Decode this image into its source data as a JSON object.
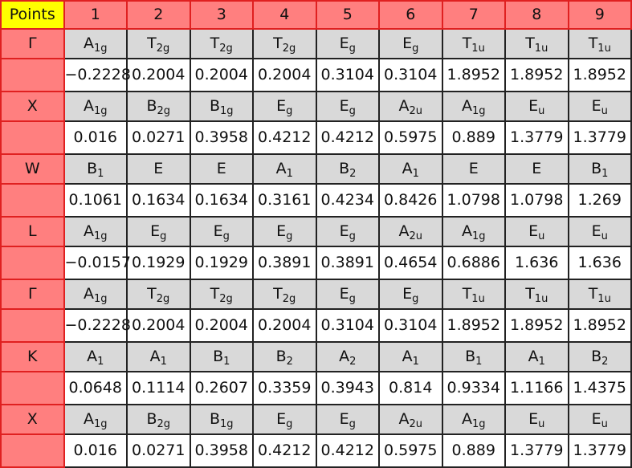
{
  "table": {
    "header": [
      "Points",
      "1",
      "2",
      "3",
      "4",
      "5",
      "6",
      "7",
      "8",
      "9"
    ],
    "rows": [
      {
        "point": "Γ",
        "symmetry": [
          {
            "base": "A",
            "sub": "1g"
          },
          {
            "base": "T",
            "sub": "2g"
          },
          {
            "base": "T",
            "sub": "2g"
          },
          {
            "base": "T",
            "sub": "2g"
          },
          {
            "base": "E",
            "sub": "g"
          },
          {
            "base": "E",
            "sub": "g"
          },
          {
            "base": "T",
            "sub": "1u"
          },
          {
            "base": "T",
            "sub": "1u"
          },
          {
            "base": "T",
            "sub": "1u"
          }
        ],
        "energies": [
          "−0.2228",
          "0.2004",
          "0.2004",
          "0.2004",
          "0.3104",
          "0.3104",
          "1.8952",
          "1.8952",
          "1.8952"
        ]
      },
      {
        "point": "X",
        "symmetry": [
          {
            "base": "A",
            "sub": "1g"
          },
          {
            "base": "B",
            "sub": "2g"
          },
          {
            "base": "B",
            "sub": "1g"
          },
          {
            "base": "E",
            "sub": "g"
          },
          {
            "base": "E",
            "sub": "g"
          },
          {
            "base": "A",
            "sub": "2u"
          },
          {
            "base": "A",
            "sub": "1g"
          },
          {
            "base": "E",
            "sub": "u"
          },
          {
            "base": "E",
            "sub": "u"
          }
        ],
        "energies": [
          "0.016",
          "0.0271",
          "0.3958",
          "0.4212",
          "0.4212",
          "0.5975",
          "0.889",
          "1.3779",
          "1.3779"
        ]
      },
      {
        "point": "W",
        "symmetry": [
          {
            "base": "B",
            "sub": "1"
          },
          {
            "base": "E"
          },
          {
            "base": "E"
          },
          {
            "base": "A",
            "sub": "1"
          },
          {
            "base": "B",
            "sub": "2"
          },
          {
            "base": "A",
            "sub": "1"
          },
          {
            "base": "E"
          },
          {
            "base": "E"
          },
          {
            "base": "B",
            "sub": "1"
          }
        ],
        "energies": [
          "0.1061",
          "0.1634",
          "0.1634",
          "0.3161",
          "0.4234",
          "0.8426",
          "1.0798",
          "1.0798",
          "1.269"
        ]
      },
      {
        "point": "L",
        "symmetry": [
          {
            "base": "A",
            "sub": "1g"
          },
          {
            "base": "E",
            "sub": "g"
          },
          {
            "base": "E",
            "sub": "g"
          },
          {
            "base": "E",
            "sub": "g"
          },
          {
            "base": "E",
            "sub": "g"
          },
          {
            "base": "A",
            "sub": "2u"
          },
          {
            "base": "A",
            "sub": "1g"
          },
          {
            "base": "E",
            "sub": "u"
          },
          {
            "base": "E",
            "sub": "u"
          }
        ],
        "energies": [
          "−0.0157",
          "0.1929",
          "0.1929",
          "0.3891",
          "0.3891",
          "0.4654",
          "0.6886",
          "1.636",
          "1.636"
        ]
      },
      {
        "point": "Γ",
        "symmetry": [
          {
            "base": "A",
            "sub": "1g"
          },
          {
            "base": "T",
            "sub": "2g"
          },
          {
            "base": "T",
            "sub": "2g"
          },
          {
            "base": "T",
            "sub": "2g"
          },
          {
            "base": "E",
            "sub": "g"
          },
          {
            "base": "E",
            "sub": "g"
          },
          {
            "base": "T",
            "sub": "1u"
          },
          {
            "base": "T",
            "sub": "1u"
          },
          {
            "base": "T",
            "sub": "1u"
          }
        ],
        "energies": [
          "−0.2228",
          "0.2004",
          "0.2004",
          "0.2004",
          "0.3104",
          "0.3104",
          "1.8952",
          "1.8952",
          "1.8952"
        ]
      },
      {
        "point": "K",
        "symmetry": [
          {
            "base": "A",
            "sub": "1"
          },
          {
            "base": "A",
            "sub": "1"
          },
          {
            "base": "B",
            "sub": "1"
          },
          {
            "base": "B",
            "sub": "2"
          },
          {
            "base": "A",
            "sub": "2"
          },
          {
            "base": "A",
            "sub": "1"
          },
          {
            "base": "B",
            "sub": "1"
          },
          {
            "base": "A",
            "sub": "1"
          },
          {
            "base": "B",
            "sub": "2"
          }
        ],
        "energies": [
          "0.0648",
          "0.1114",
          "0.2607",
          "0.3359",
          "0.3943",
          "0.814",
          "0.9334",
          "1.1166",
          "1.4375"
        ]
      },
      {
        "point": "X",
        "symmetry": [
          {
            "base": "A",
            "sub": "1g"
          },
          {
            "base": "B",
            "sub": "2g"
          },
          {
            "base": "B",
            "sub": "1g"
          },
          {
            "base": "E",
            "sub": "g"
          },
          {
            "base": "E",
            "sub": "g"
          },
          {
            "base": "A",
            "sub": "2u"
          },
          {
            "base": "A",
            "sub": "1g"
          },
          {
            "base": "E",
            "sub": "u"
          },
          {
            "base": "E",
            "sub": "u"
          }
        ],
        "energies": [
          "0.016",
          "0.0271",
          "0.3958",
          "0.4212",
          "0.4212",
          "0.5975",
          "0.889",
          "1.3779",
          "1.3779"
        ]
      }
    ]
  }
}
